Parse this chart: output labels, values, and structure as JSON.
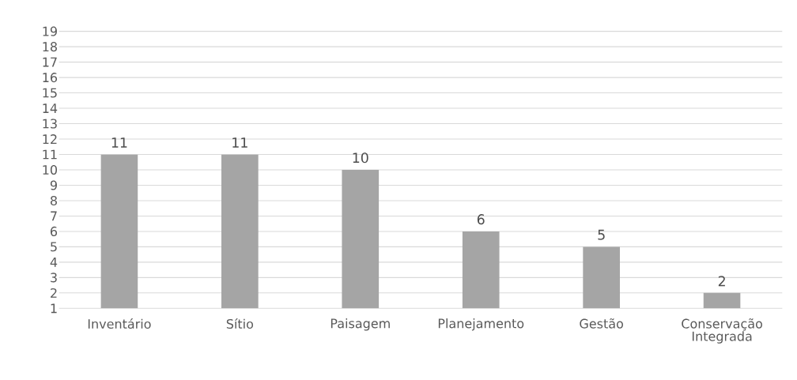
{
  "chart_data": {
    "type": "bar",
    "categories": [
      "Inventário",
      "Sítio",
      "Paisagem",
      "Planejamento",
      "Gestão",
      "Conservação Integrada"
    ],
    "values": [
      11,
      11,
      10,
      6,
      5,
      2
    ],
    "color": "#a5a5a5",
    "ylim": [
      1,
      19
    ],
    "yticks": [
      1,
      2,
      3,
      4,
      5,
      6,
      7,
      8,
      9,
      10,
      11,
      12,
      13,
      14,
      15,
      16,
      17,
      18,
      19
    ],
    "grid": "y",
    "data_labels": true
  }
}
